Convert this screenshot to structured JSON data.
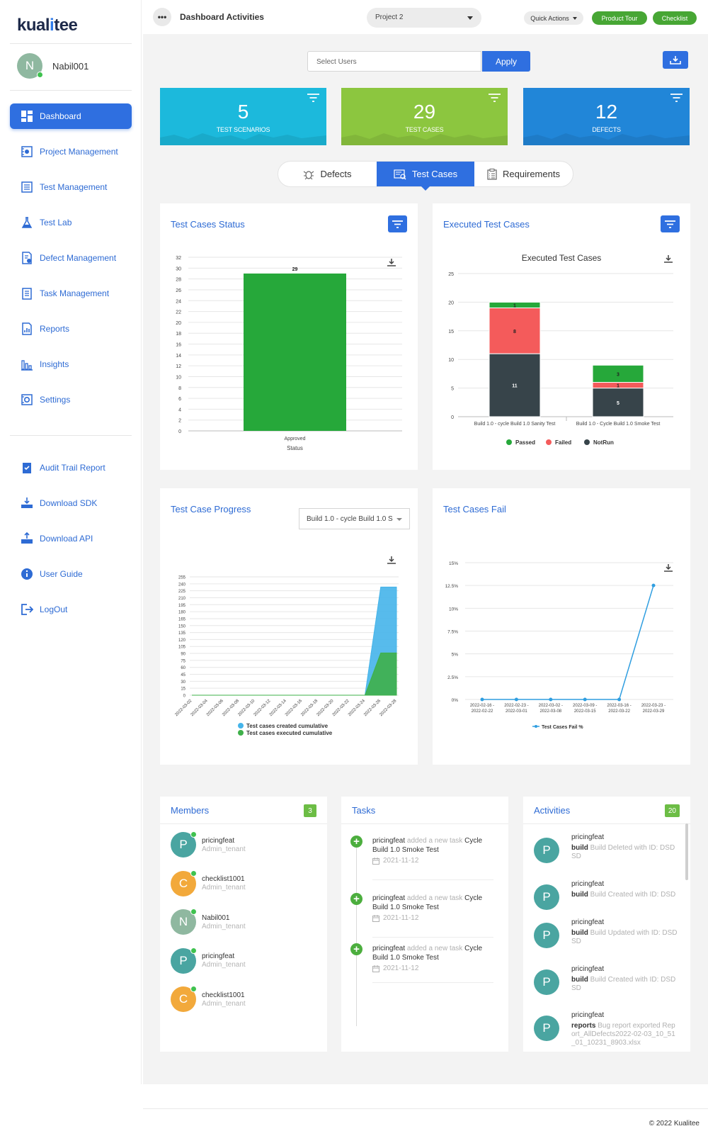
{
  "app": {
    "logo_prefix": "kual",
    "logo_mid": "i",
    "logo_suffix": "tee",
    "copyright": "© 2022 Kualitee"
  },
  "user": {
    "initial": "N",
    "name": "Nabil001",
    "avatar_color": "#8fb8a0"
  },
  "nav": [
    {
      "label": "Dashboard",
      "icon": "dashboard-icon"
    },
    {
      "label": "Project Management",
      "icon": "project-icon"
    },
    {
      "label": "Test Management",
      "icon": "test-management-icon"
    },
    {
      "label": "Test Lab",
      "icon": "flask-icon"
    },
    {
      "label": "Defect Management",
      "icon": "defect-icon"
    },
    {
      "label": "Task Management",
      "icon": "task-icon"
    },
    {
      "label": "Reports",
      "icon": "reports-icon"
    },
    {
      "label": "Insights",
      "icon": "insights-icon"
    },
    {
      "label": "Settings",
      "icon": "settings-icon"
    }
  ],
  "nav2": [
    {
      "label": "Audit Trail Report",
      "icon": "audit-icon"
    },
    {
      "label": "Download SDK",
      "icon": "download-sdk-icon"
    },
    {
      "label": "Download API",
      "icon": "download-api-icon"
    },
    {
      "label": "User Guide",
      "icon": "info-icon"
    },
    {
      "label": "LogOut",
      "icon": "logout-icon"
    }
  ],
  "topbar": {
    "title": "Dashboard Activities",
    "project": "Project 2",
    "quick_actions": "Quick Actions",
    "product_tour": "Product Tour",
    "checklist": "Checklist"
  },
  "filter": {
    "placeholder": "Select Users",
    "apply": "Apply"
  },
  "stats": [
    {
      "value": "5",
      "label": "TEST SCENARIOS",
      "color": "#1cb9dc"
    },
    {
      "value": "29",
      "label": "TEST CASES",
      "color": "#8cc63f"
    },
    {
      "value": "12",
      "label": "DEFECTS",
      "color": "#2186d8"
    }
  ],
  "tabs": {
    "defects": "Defects",
    "test_cases": "Test Cases",
    "requirements": "Requirements"
  },
  "cards": {
    "status_title": "Test Cases Status",
    "executed_title": "Executed Test Cases",
    "progress_title": "Test Case Progress",
    "progress_build": "Build 1.0 - cycle Build 1.0 S",
    "fail_title": "Test Cases Fail"
  },
  "chart_data": [
    {
      "type": "bar",
      "categories": [
        "Approved"
      ],
      "values": [
        29
      ],
      "xlabel": "Status",
      "ylim": [
        0,
        32
      ],
      "yticks": [
        0,
        2,
        4,
        6,
        8,
        10,
        12,
        14,
        16,
        18,
        20,
        22,
        24,
        26,
        28,
        30,
        32
      ],
      "colors": [
        "#26a83a"
      ]
    },
    {
      "type": "bar",
      "stacked": true,
      "title": "Executed Test Cases",
      "categories": [
        "Build 1.0 - cycle Build 1.0 Sanity Test",
        "Build 1.0 - Cycle Build 1.0 Smoke Test"
      ],
      "series": [
        {
          "name": "NotRun",
          "values": [
            11,
            5
          ],
          "color": "#37444a"
        },
        {
          "name": "Failed",
          "values": [
            8,
            1
          ],
          "color": "#f45b5b"
        },
        {
          "name": "Passed",
          "values": [
            1,
            3
          ],
          "color": "#26a83a"
        }
      ],
      "ylim": [
        0,
        25
      ],
      "yticks": [
        0,
        5,
        10,
        15,
        20,
        25
      ],
      "legend": "bottom"
    },
    {
      "type": "area",
      "x": [
        "2022-03-02",
        "2022-03-04",
        "2022-03-06",
        "2022-03-08",
        "2022-03-10",
        "2022-03-12",
        "2022-03-14",
        "2022-03-16",
        "2022-03-18",
        "2022-03-20",
        "2022-03-22",
        "2022-03-24",
        "2022-03-26",
        "2022-03-28"
      ],
      "series": [
        {
          "name": "Test cases created cumulative",
          "values": [
            0,
            0,
            0,
            0,
            0,
            0,
            0,
            0,
            0,
            0,
            0,
            0,
            233,
            233
          ],
          "color": "#45b4ea"
        },
        {
          "name": "Test cases executed cumulative",
          "values": [
            0,
            0,
            0,
            0,
            0,
            0,
            0,
            0,
            0,
            0,
            0,
            0,
            91,
            91
          ],
          "color": "#3fb04a"
        }
      ],
      "ylim": [
        0,
        255
      ],
      "yticks": [
        0,
        15,
        30,
        45,
        60,
        75,
        90,
        105,
        120,
        135,
        150,
        165,
        180,
        195,
        210,
        225,
        240,
        255
      ],
      "legend": "bottom"
    },
    {
      "type": "line",
      "x": [
        "2022-02-16 - 2022-02-22",
        "2022-02-23 - 2022-03-01",
        "2022-03-02 - 2022-03-08",
        "2022-03-09 - 2022-03-15",
        "2022-03-16 - 2022-03-22",
        "2022-03-23 - 2022-03-29"
      ],
      "series": [
        {
          "name": "Test Cases Fail %",
          "values": [
            0,
            0,
            0,
            0,
            0,
            12.5
          ],
          "color": "#2f9ee0"
        }
      ],
      "ylim": [
        0,
        15
      ],
      "yticks": [
        "0%",
        "2.5%",
        "5%",
        "7.5%",
        "10%",
        "12.5%",
        "15%"
      ],
      "legend": "bottom"
    }
  ],
  "members": {
    "title": "Members",
    "count": "3",
    "items": [
      {
        "initial": "P",
        "name": "pricingfeat",
        "role": "Admin_tenant",
        "color": "#4aa5a1"
      },
      {
        "initial": "C",
        "name": "checklist1001",
        "role": "Admin_tenant",
        "color": "#f2a93b"
      },
      {
        "initial": "N",
        "name": "Nabil001",
        "role": "Admin_tenant",
        "color": "#8fb8a0"
      },
      {
        "initial": "P",
        "name": "pricingfeat",
        "role": "Admin_tenant",
        "color": "#4aa5a1"
      },
      {
        "initial": "C",
        "name": "checklist1001",
        "role": "Admin_tenant",
        "color": "#f2a93b"
      }
    ]
  },
  "tasks": {
    "title": "Tasks",
    "items": [
      {
        "user": "pricingfeat",
        "action": "added a new task",
        "task": "Cycle Build 1.0 Smoke Test",
        "date": "2021-11-12"
      },
      {
        "user": "pricingfeat",
        "action": "added a new task",
        "task": "Cycle Build 1.0 Smoke Test",
        "date": "2021-11-12"
      },
      {
        "user": "pricingfeat",
        "action": "added a new task",
        "task": "Cycle Build 1.0 Smoke Test",
        "date": "2021-11-12"
      }
    ]
  },
  "activities": {
    "title": "Activities",
    "count": "20",
    "items": [
      {
        "initial": "P",
        "user": "pricingfeat",
        "type": "build",
        "text": "Build Deleted with ID: DSDSD"
      },
      {
        "initial": "P",
        "user": "pricingfeat",
        "type": "build",
        "text": "Build Created with ID: DSD"
      },
      {
        "initial": "P",
        "user": "pricingfeat",
        "type": "build",
        "text": "Build Updated with ID: DSDSD"
      },
      {
        "initial": "P",
        "user": "pricingfeat",
        "type": "build",
        "text": "Build Created with ID: DSDSD"
      },
      {
        "initial": "P",
        "user": "pricingfeat",
        "type": "reports",
        "text": "Bug report exported Report_AllDefects2022-02-03_10_51_01_10231_8903.xlsx"
      }
    ]
  }
}
